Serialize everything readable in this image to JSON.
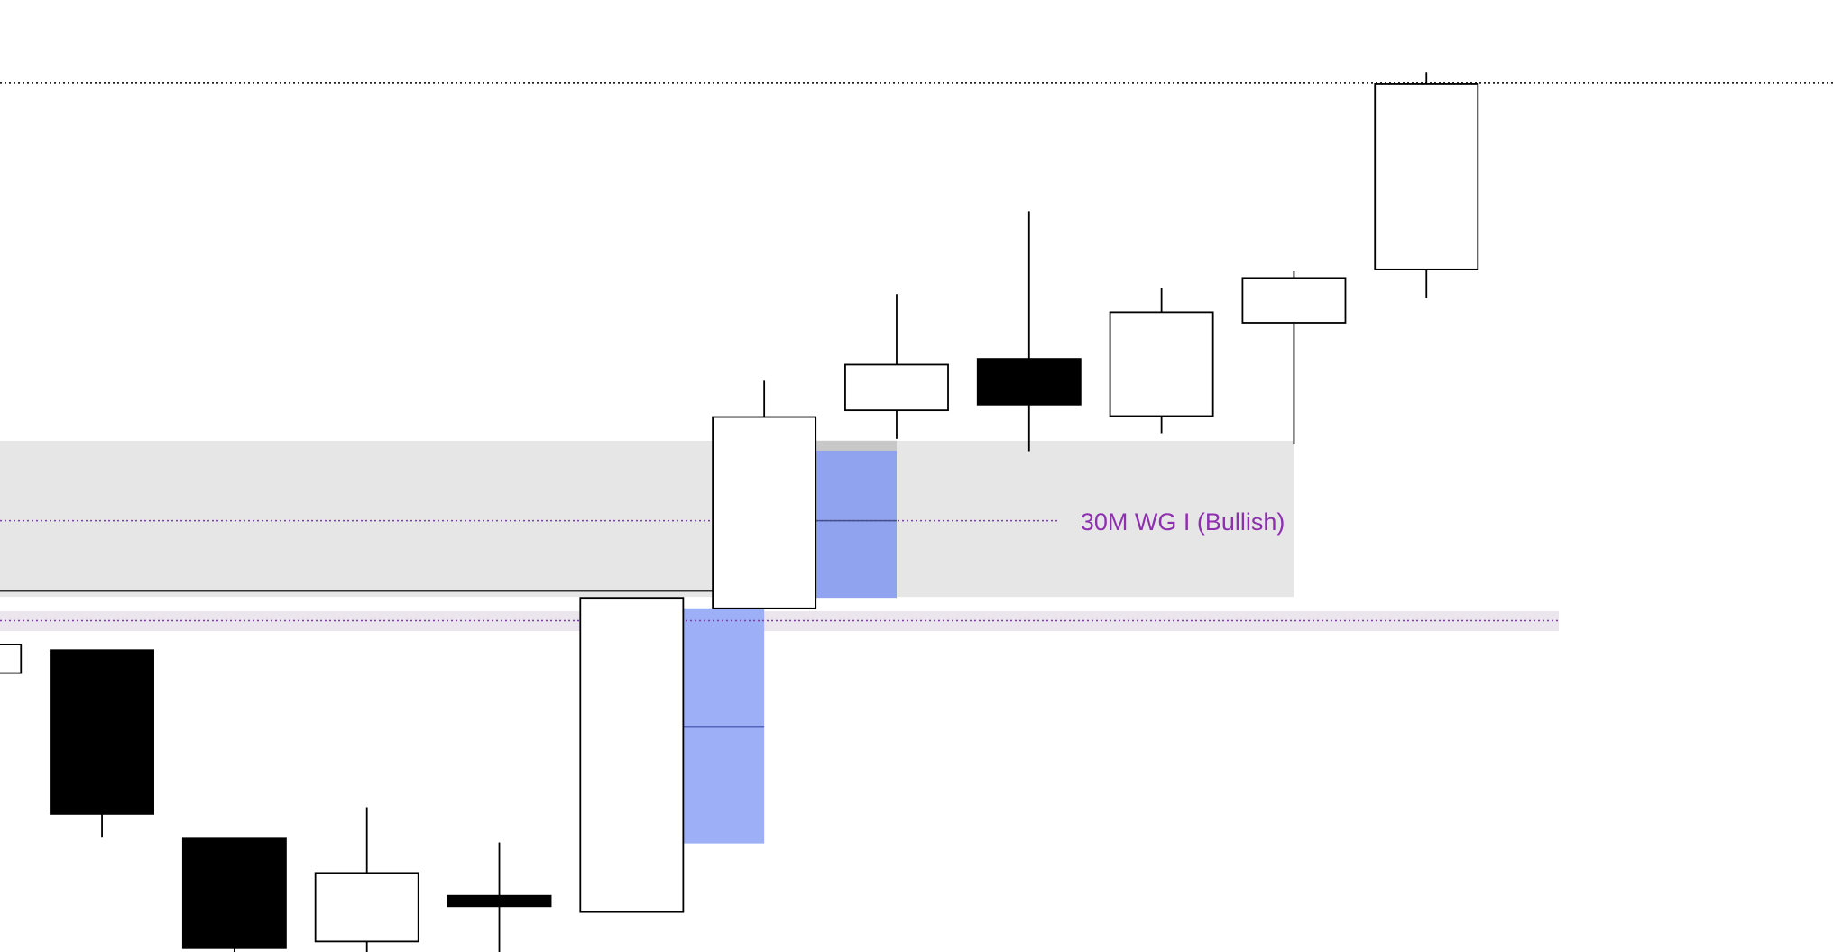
{
  "chart_data": {
    "type": "candlestick",
    "xlim": [
      0.23,
      14.07
    ],
    "ylim": [
      0,
      100
    ],
    "x": [
      0,
      1,
      2,
      3,
      4,
      5,
      6,
      7,
      8,
      9,
      10,
      11
    ],
    "open": [
      29.3,
      31.7,
      12.0,
      1.1,
      5.9,
      4.2,
      36.1,
      56.9,
      62.3,
      56.3,
      66.1,
      71.7
    ],
    "high": [
      32.3,
      31.7,
      12.0,
      15.2,
      11.5,
      37.2,
      60.0,
      69.1,
      77.8,
      69.7,
      71.5,
      92.4
    ],
    "low": [
      29.3,
      12.1,
      0,
      0,
      0,
      4.2,
      36.1,
      53.9,
      52.6,
      54.5,
      53.4,
      68.7
    ],
    "close": [
      32.3,
      14.5,
      0.4,
      8.3,
      4.8,
      37.2,
      56.2,
      61.7,
      57.5,
      67.2,
      70.8,
      91.2
    ],
    "up_color": "#ffffff",
    "down_color": "#000000",
    "zones": [
      {
        "x": [
          0.23,
          10
        ],
        "y": [
          37.3,
          53.7
        ],
        "color": "#e6e6e6"
      },
      {
        "x": [
          0.23,
          12
        ],
        "y": [
          33.7,
          35.8
        ],
        "color": "#ebe6ee"
      },
      {
        "x": [
          6.38,
          7.0
        ],
        "y": [
          37.2,
          53.7
        ],
        "color": "#8fa3ef"
      },
      {
        "x": [
          5.38,
          6.0
        ],
        "y": [
          11.4,
          36.1
        ],
        "color": "#9caff7"
      }
    ],
    "levels": [
      {
        "value": 91.3,
        "x": [
          0.23,
          14.07
        ],
        "color": "#000000"
      },
      {
        "value": 45.3,
        "x": [
          0.23,
          8.22
        ],
        "color": "#7b3fa0"
      },
      {
        "value": 34.8,
        "x": [
          0.23,
          12
        ],
        "color": "#7b3fa0"
      },
      {
        "value": 37.9,
        "x": [
          0.23,
          5.61
        ],
        "color": "#333333",
        "style": "solid"
      },
      {
        "value": 23.7,
        "x": [
          5.38,
          6.0
        ],
        "color": "#5566bb",
        "style": "solid"
      },
      {
        "value": 45.3,
        "x": [
          6.38,
          7.0
        ],
        "color": "#44508a",
        "style": "solid"
      }
    ],
    "label": {
      "text": "30M WG I (Bullish)",
      "color": "#8e2fb0"
    }
  }
}
